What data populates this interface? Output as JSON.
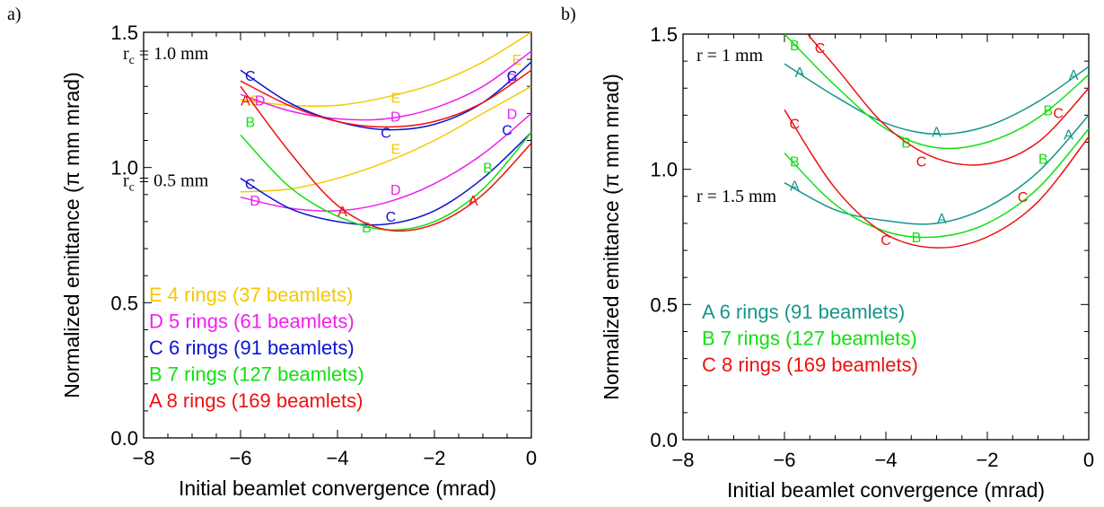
{
  "panels": [
    {
      "panel_label": "a)",
      "annotations": [
        {
          "main": "r",
          "sub": "c",
          "rest": " = 1.0 mm",
          "y_value": 1.42
        },
        {
          "main": "r",
          "sub": "c",
          "rest": " = 0.5 mm",
          "y_value": 0.95
        }
      ],
      "legend": [
        {
          "marker": "E",
          "text": "4 rings (37  beamlets)",
          "color": "#f5c800"
        },
        {
          "marker": "D",
          "text": "5 rings (61  beamlets)",
          "color": "#ee20ee"
        },
        {
          "marker": "C",
          "text": "6 rings (91  beamlets)",
          "color": "#0a14d2"
        },
        {
          "marker": "B",
          "text": "7 rings (127 beamlets)",
          "color": "#10e010"
        },
        {
          "marker": "A",
          "text": "8 rings (169 beamlets)",
          "color": "#ee1010"
        }
      ]
    },
    {
      "panel_label": "b)",
      "annotations": [
        {
          "main": "r",
          "sub": "",
          "rest": " = 1 mm",
          "y_value": 1.42
        },
        {
          "main": "r",
          "sub": "",
          "rest": " = 1.5 mm",
          "y_value": 0.9
        }
      ],
      "legend": [
        {
          "marker": "A",
          "text": "6 rings (91 beamlets)",
          "color": "#14968c"
        },
        {
          "marker": "B",
          "text": "7 rings (127 beamlets)",
          "color": "#10e010"
        },
        {
          "marker": "C",
          "text": "8 rings (169 beamlets)",
          "color": "#ee1010"
        }
      ]
    }
  ],
  "chart_data": [
    {
      "type": "line",
      "xlabel": "Initial beamlet convergence (mrad)",
      "ylabel": "Normalized emittance (π mm mrad)",
      "xlim": [
        -8,
        0
      ],
      "ylim": [
        0,
        1.5
      ],
      "xticks": [
        -8,
        -6,
        -4,
        -2,
        0
      ],
      "yticks": [
        0.0,
        0.5,
        1.0,
        1.5
      ],
      "xtick_labels": [
        "−8",
        "−6",
        "−4",
        "−2",
        "0"
      ],
      "ytick_labels": [
        "0.0",
        "0.5",
        "1.0",
        "1.5"
      ],
      "series": [
        {
          "name": "E",
          "color": "#f5c800",
          "x": [
            -6,
            -5,
            -4,
            -3,
            -2,
            -1,
            0
          ],
          "y": [
            1.25,
            1.23,
            1.23,
            1.26,
            1.31,
            1.39,
            1.5
          ],
          "markers": [
            {
              "label": "E",
              "x": -5.7,
              "y": 1.25
            },
            {
              "label": "E",
              "x": -2.8,
              "y": 1.26
            },
            {
              "label": "E",
              "x": -0.3,
              "y": 1.4
            }
          ]
        },
        {
          "name": "D",
          "color": "#ee20ee",
          "x": [
            -6,
            -5,
            -4,
            -3,
            -2,
            -1,
            0
          ],
          "y": [
            1.27,
            1.21,
            1.18,
            1.18,
            1.22,
            1.3,
            1.43
          ],
          "markers": [
            {
              "label": "D",
              "x": -5.6,
              "y": 1.25
            },
            {
              "label": "D",
              "x": -2.8,
              "y": 1.19
            },
            {
              "label": "D",
              "x": -0.4,
              "y": 1.33
            }
          ]
        },
        {
          "name": "C",
          "color": "#0a14d2",
          "x": [
            -6,
            -5,
            -4,
            -3,
            -2,
            -1,
            0
          ],
          "y": [
            1.36,
            1.24,
            1.17,
            1.14,
            1.16,
            1.24,
            1.39
          ],
          "markers": [
            {
              "label": "C",
              "x": -5.8,
              "y": 1.34
            },
            {
              "label": "C",
              "x": -3.0,
              "y": 1.13
            },
            {
              "label": "C",
              "x": -0.4,
              "y": 1.34
            }
          ]
        },
        {
          "name": "A",
          "color": "#ee1010",
          "x": [
            -6,
            -5,
            -4,
            -3,
            -2,
            -1,
            0
          ],
          "y": [
            1.32,
            1.23,
            1.17,
            1.15,
            1.17,
            1.24,
            1.36
          ],
          "markers": [
            {
              "label": "A",
              "x": -5.9,
              "y": 1.25
            }
          ]
        },
        {
          "name": "E",
          "color": "#f5c800",
          "x": [
            -6,
            -5,
            -4,
            -3,
            -2,
            -1,
            0
          ],
          "y": [
            0.91,
            0.92,
            0.96,
            1.02,
            1.1,
            1.2,
            1.3
          ],
          "markers": [
            {
              "label": "E",
              "x": -2.8,
              "y": 1.07
            }
          ]
        },
        {
          "name": "D",
          "color": "#ee20ee",
          "x": [
            -6,
            -5,
            -4,
            -3,
            -2,
            -1,
            0
          ],
          "y": [
            0.89,
            0.85,
            0.84,
            0.87,
            0.94,
            1.05,
            1.2
          ],
          "markers": [
            {
              "label": "D",
              "x": -5.7,
              "y": 0.88
            },
            {
              "label": "D",
              "x": -2.8,
              "y": 0.92
            },
            {
              "label": "D",
              "x": -0.4,
              "y": 1.2
            }
          ]
        },
        {
          "name": "C",
          "color": "#0a14d2",
          "x": [
            -6,
            -5,
            -4,
            -3,
            -2,
            -1,
            0
          ],
          "y": [
            0.96,
            0.85,
            0.8,
            0.79,
            0.84,
            0.96,
            1.13
          ],
          "markers": [
            {
              "label": "C",
              "x": -5.8,
              "y": 0.94
            },
            {
              "label": "C",
              "x": -2.9,
              "y": 0.82
            },
            {
              "label": "C",
              "x": -0.5,
              "y": 1.14
            }
          ]
        },
        {
          "name": "B",
          "color": "#10e010",
          "x": [
            -6,
            -5,
            -4,
            -3,
            -2,
            -1,
            0
          ],
          "y": [
            1.12,
            0.93,
            0.82,
            0.77,
            0.8,
            0.92,
            1.13
          ],
          "markers": [
            {
              "label": "B",
              "x": -5.8,
              "y": 1.17
            },
            {
              "label": "B",
              "x": -3.4,
              "y": 0.78
            },
            {
              "label": "B",
              "x": -0.9,
              "y": 1.0
            }
          ]
        },
        {
          "name": "A",
          "color": "#ee1010",
          "x": [
            -6,
            -5,
            -4,
            -3,
            -2,
            -1,
            0
          ],
          "y": [
            1.3,
            1.06,
            0.86,
            0.77,
            0.79,
            0.9,
            1.09
          ],
          "markers": [
            {
              "label": "A",
              "x": -3.9,
              "y": 0.84
            },
            {
              "label": "A",
              "x": -1.2,
              "y": 0.88
            }
          ]
        }
      ]
    },
    {
      "type": "line",
      "xlabel": "Initial beamlet convergence (mrad)",
      "ylabel": "Normalized emittance (π mm mrad)",
      "xlim": [
        -8,
        0
      ],
      "ylim": [
        0,
        1.5
      ],
      "xticks": [
        -8,
        -6,
        -4,
        -2,
        0
      ],
      "yticks": [
        0.0,
        0.5,
        1.0,
        1.5
      ],
      "xtick_labels": [
        "−8",
        "−6",
        "−4",
        "−2",
        "0"
      ],
      "ytick_labels": [
        "0.0",
        "0.5",
        "1.0",
        "1.5"
      ],
      "series": [
        {
          "name": "A",
          "color": "#14968c",
          "x": [
            -6,
            -5,
            -4,
            -3,
            -2,
            -1,
            0
          ],
          "y": [
            1.39,
            1.27,
            1.17,
            1.13,
            1.16,
            1.25,
            1.38
          ],
          "markers": [
            {
              "label": "A",
              "x": -5.7,
              "y": 1.36
            },
            {
              "label": "A",
              "x": -3.0,
              "y": 1.14
            },
            {
              "label": "A",
              "x": -0.3,
              "y": 1.35
            }
          ]
        },
        {
          "name": "B",
          "color": "#10e010",
          "x": [
            -6,
            -5,
            -4,
            -3,
            -2,
            -1,
            0
          ],
          "y": [
            1.5,
            1.31,
            1.15,
            1.08,
            1.1,
            1.19,
            1.35
          ],
          "markers": [
            {
              "label": "B",
              "x": -5.8,
              "y": 1.46
            },
            {
              "label": "B",
              "x": -3.6,
              "y": 1.1
            },
            {
              "label": "B",
              "x": -0.8,
              "y": 1.22
            }
          ]
        },
        {
          "name": "C",
          "color": "#ee1010",
          "x": [
            -6,
            -5,
            -4,
            -3,
            -2,
            -1,
            0
          ],
          "y": [
            1.6,
            1.38,
            1.16,
            1.04,
            1.02,
            1.1,
            1.3
          ],
          "markers": [
            {
              "label": "C",
              "x": -5.3,
              "y": 1.45
            },
            {
              "label": "C",
              "x": -3.3,
              "y": 1.03
            },
            {
              "label": "C",
              "x": -0.6,
              "y": 1.21
            }
          ]
        },
        {
          "name": "A",
          "color": "#14968c",
          "x": [
            -6,
            -5,
            -4,
            -3,
            -2,
            -1,
            0
          ],
          "y": [
            0.95,
            0.85,
            0.81,
            0.8,
            0.86,
            0.99,
            1.2
          ],
          "markers": [
            {
              "label": "A",
              "x": -5.8,
              "y": 0.94
            },
            {
              "label": "A",
              "x": -2.9,
              "y": 0.82
            },
            {
              "label": "A",
              "x": -0.4,
              "y": 1.13
            }
          ]
        },
        {
          "name": "B",
          "color": "#10e010",
          "x": [
            -6,
            -5,
            -4,
            -3,
            -2,
            -1,
            0
          ],
          "y": [
            1.06,
            0.87,
            0.77,
            0.75,
            0.8,
            0.93,
            1.15
          ],
          "markers": [
            {
              "label": "B",
              "x": -5.8,
              "y": 1.03
            },
            {
              "label": "B",
              "x": -3.4,
              "y": 0.75
            },
            {
              "label": "B",
              "x": -0.9,
              "y": 1.04
            }
          ]
        },
        {
          "name": "C",
          "color": "#ee1010",
          "x": [
            -6,
            -5,
            -4,
            -3,
            -2,
            -1,
            0
          ],
          "y": [
            1.22,
            0.93,
            0.76,
            0.71,
            0.75,
            0.88,
            1.12
          ],
          "markers": [
            {
              "label": "C",
              "x": -5.8,
              "y": 1.17
            },
            {
              "label": "C",
              "x": -4.0,
              "y": 0.74
            },
            {
              "label": "C",
              "x": -1.3,
              "y": 0.9
            }
          ]
        }
      ]
    }
  ]
}
